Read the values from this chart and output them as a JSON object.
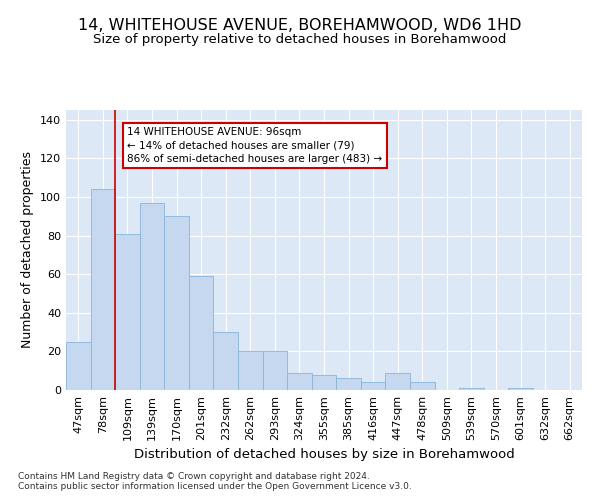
{
  "title": "14, WHITEHOUSE AVENUE, BOREHAMWOOD, WD6 1HD",
  "subtitle": "Size of property relative to detached houses in Borehamwood",
  "xlabel": "Distribution of detached houses by size in Borehamwood",
  "ylabel": "Number of detached properties",
  "footnote1": "Contains HM Land Registry data © Crown copyright and database right 2024.",
  "footnote2": "Contains public sector information licensed under the Open Government Licence v3.0.",
  "categories": [
    "47sqm",
    "78sqm",
    "109sqm",
    "139sqm",
    "170sqm",
    "201sqm",
    "232sqm",
    "262sqm",
    "293sqm",
    "324sqm",
    "355sqm",
    "385sqm",
    "416sqm",
    "447sqm",
    "478sqm",
    "509sqm",
    "539sqm",
    "570sqm",
    "601sqm",
    "632sqm",
    "662sqm"
  ],
  "values": [
    25,
    104,
    81,
    97,
    90,
    59,
    30,
    20,
    20,
    9,
    8,
    6,
    4,
    9,
    4,
    0,
    1,
    0,
    1,
    0,
    0
  ],
  "bar_color": "#c5d8ef",
  "bar_edge_color": "#8ab4d8",
  "vline_color": "#cc0000",
  "vline_x_index": 1.5,
  "annotation_text": "14 WHITEHOUSE AVENUE: 96sqm\n← 14% of detached houses are smaller (79)\n86% of semi-detached houses are larger (483) →",
  "annotation_box_facecolor": "#ffffff",
  "annotation_box_edgecolor": "#cc0000",
  "ylim": [
    0,
    145
  ],
  "yticks": [
    0,
    20,
    40,
    60,
    80,
    100,
    120,
    140
  ],
  "bg_color": "#dce8f5",
  "grid_color": "#ffffff",
  "fig_facecolor": "#ffffff",
  "title_fontsize": 11.5,
  "subtitle_fontsize": 9.5,
  "xlabel_fontsize": 9.5,
  "ylabel_fontsize": 9,
  "tick_fontsize": 8,
  "footnote_fontsize": 6.5
}
